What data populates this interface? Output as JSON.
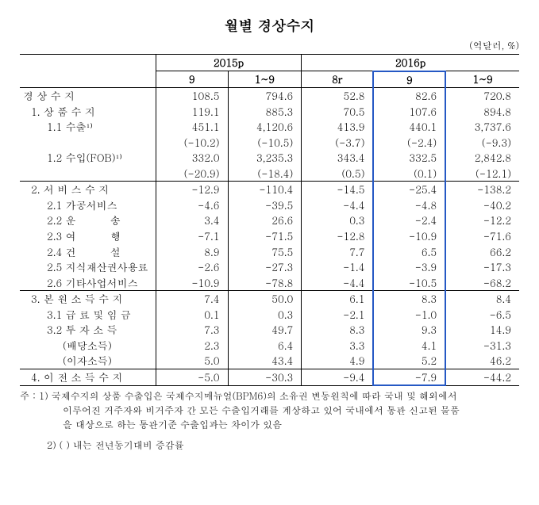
{
  "title": "월별 경상수지",
  "unit": "(억달러, %)",
  "header": {
    "y2015": "2015p",
    "y2016": "2016p",
    "c1": "9",
    "c2": "1~9",
    "c3": "8r",
    "c4": "9",
    "c5": "1~9"
  },
  "rows": [
    {
      "label": "경 상 수 지",
      "cls": "",
      "v": [
        "108.5",
        "794.6",
        "52.8",
        "82.6",
        "720.8"
      ]
    },
    {
      "label": "1. 상 품 수 지",
      "cls": "indent1",
      "v": [
        "119.1",
        "885.3",
        "70.5",
        "107.6",
        "894.8"
      ]
    },
    {
      "label": "1.1 수출¹⁾",
      "cls": "indent2",
      "v": [
        "451.1",
        "4,120.6",
        "413.9",
        "440.1",
        "3,737.6"
      ]
    },
    {
      "label": "",
      "cls": "",
      "v": [
        "(-10.2)",
        "(-10.5)",
        "(-3.7)",
        "(-2.4)",
        "(-9.3)"
      ]
    },
    {
      "label": "1.2 수입(FOB)¹⁾",
      "cls": "indent2",
      "v": [
        "332.0",
        "3,235.3",
        "343.4",
        "332.5",
        "2,842.8"
      ]
    },
    {
      "label": "",
      "cls": "",
      "v": [
        "(-20.9)",
        "(-18.4)",
        "(0.5)",
        "(0.1)",
        "(-12.1)"
      ]
    },
    {
      "label": "2. 서 비 스 수 지",
      "cls": "indent1 thin-top",
      "v": [
        "-12.9",
        "-110.4",
        "-14.5",
        "-25.4",
        "-138.2"
      ]
    },
    {
      "label": "2.1 가공서비스",
      "cls": "indent2",
      "v": [
        "-4.6",
        "-39.5",
        "-4.4",
        "-4.8",
        "-40.2"
      ]
    },
    {
      "label": "2.2 운          송",
      "cls": "indent2",
      "v": [
        "3.4",
        "26.6",
        "0.3",
        "-2.4",
        "-12.2"
      ]
    },
    {
      "label": "2.3 여          행",
      "cls": "indent2",
      "v": [
        "-7.1",
        "-71.5",
        "-12.8",
        "-10.9",
        "-71.6"
      ]
    },
    {
      "label": "2.4 건          설",
      "cls": "indent2",
      "v": [
        "8.9",
        "75.5",
        "7.7",
        "6.5",
        "66.2"
      ]
    },
    {
      "label": "2.5 지식재산권사용료",
      "cls": "indent2",
      "v": [
        "-2.6",
        "-27.3",
        "-1.4",
        "-3.9",
        "-17.3"
      ]
    },
    {
      "label": "2.6 기타사업서비스",
      "cls": "indent2",
      "v": [
        "-10.9",
        "-78.8",
        "-4.4",
        "-10.5",
        "-68.2"
      ]
    },
    {
      "label": "3. 본 원 소 득 수 지",
      "cls": "indent1 thin-top",
      "v": [
        "7.4",
        "50.0",
        "6.1",
        "8.3",
        "8.4"
      ]
    },
    {
      "label": "3.1 급 료 및 임 금",
      "cls": "indent2",
      "v": [
        "0.1",
        "0.3",
        "-2.1",
        "-1.0",
        "-6.5"
      ]
    },
    {
      "label": "3.2 투 자 소 득",
      "cls": "indent2",
      "v": [
        "7.3",
        "49.7",
        "8.3",
        "9.3",
        "14.9"
      ]
    },
    {
      "label": "(배당소득)",
      "cls": "indent3",
      "v": [
        "2.3",
        "6.4",
        "3.3",
        "4.1",
        "-31.3"
      ]
    },
    {
      "label": "(이자소득)",
      "cls": "indent3",
      "v": [
        "5.0",
        "43.4",
        "4.9",
        "5.2",
        "46.2"
      ]
    },
    {
      "label": "4. 이 전 소 득 수 지",
      "cls": "indent1 thin-top",
      "v": [
        "-5.0",
        "-30.3",
        "-9.4",
        "-7.9",
        "-44.2"
      ]
    }
  ],
  "notes": {
    "n1a": "주 : 1) 국제수지의 상품 수출입은 국제수지매뉴얼(BPM6)의 소유권 변동원칙에 따라 국내 및 해외에서",
    "n1b": "이루어진 거주자와 비거주자 간 모든 수출입거래를 계상하고 있어 국내에서 통관 신고된 물품",
    "n1c": "을 대상으로 하는 통관기준 수출입과는 차이가 있음",
    "n2": "2) (  ) 내는 전년동기대비 증감률"
  }
}
